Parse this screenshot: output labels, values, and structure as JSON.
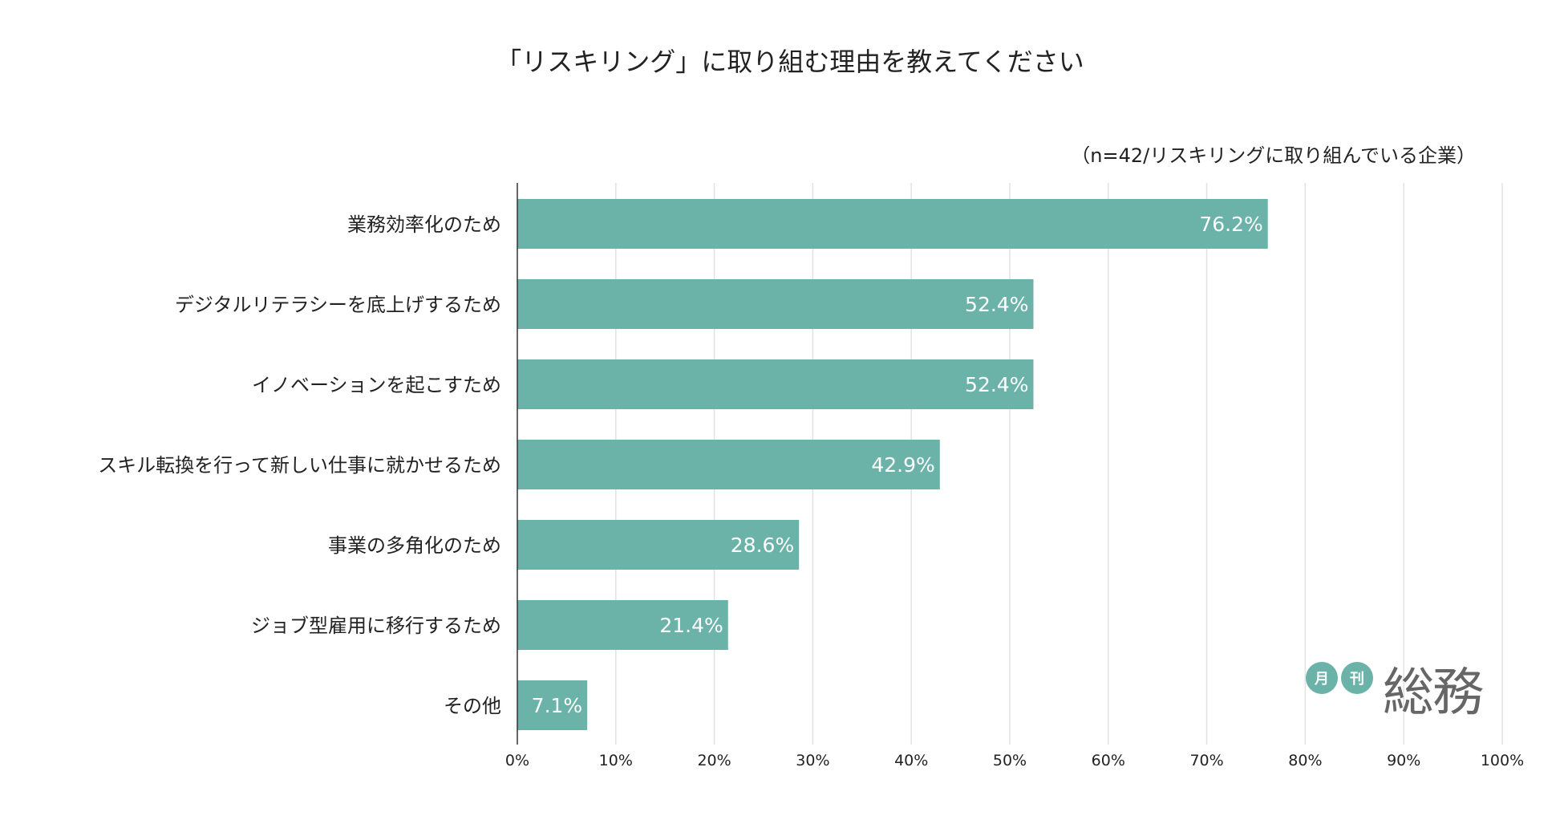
{
  "chart_data": {
    "type": "bar",
    "orientation": "horizontal",
    "title": "「リスキリング」に取り組む理由を教えてください",
    "subtitle": "（n=42/リスキリングに取り組んでいる企業）",
    "categories": [
      "業務効率化のため",
      "デジタルリテラシーを底上げするため",
      "イノベーションを起こすため",
      "スキル転換を行って新しい仕事に就かせるため",
      "事業の多角化のため",
      "ジョブ型雇用に移行するため",
      "その他"
    ],
    "values": [
      76.2,
      52.4,
      52.4,
      42.9,
      28.6,
      21.4,
      7.1
    ],
    "value_labels": [
      "76.2%",
      "52.4%",
      "52.4%",
      "42.9%",
      "28.6%",
      "21.4%",
      "7.1%"
    ],
    "xlim": [
      0,
      100
    ],
    "xticks": [
      "0%",
      "10%",
      "20%",
      "30%",
      "40%",
      "50%",
      "60%",
      "70%",
      "80%",
      "90%",
      "100%"
    ],
    "grid": true,
    "bar_color": "#6bb3a8"
  },
  "logo": {
    "circle1": "月",
    "circle2": "刊",
    "main": "総務"
  }
}
